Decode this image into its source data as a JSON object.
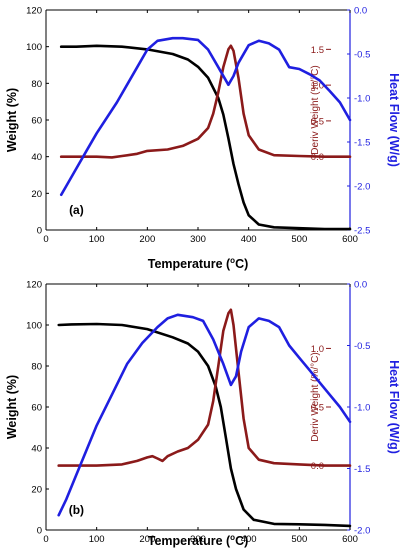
{
  "chart_data": [
    {
      "panel_label": "(a)",
      "type": "line",
      "xlabel": "Temperature (",
      "xlabel_sup": "o",
      "xlabel_tail": "C)",
      "xlim": [
        0,
        600
      ],
      "x_ticks": [
        0,
        100,
        200,
        300,
        400,
        500,
        600
      ],
      "axes": {
        "left": {
          "label": "Weight (%)",
          "lim": [
            0,
            120
          ],
          "ticks": [
            0,
            20,
            40,
            60,
            80,
            100,
            120
          ],
          "color": "#000000"
        },
        "deriv": {
          "label": "Deriv Weight (%/°C)",
          "lim": [
            -1.025,
            2.05
          ],
          "ticks": [
            "0.0",
            "0.5",
            "1.0",
            "1.5"
          ],
          "tick_values": [
            0,
            0.5,
            1.0,
            1.5
          ],
          "color": "#8b1a1a"
        },
        "right": {
          "label": "Heat Flow (W/g)",
          "lim": [
            -2.5,
            0
          ],
          "ticks": [
            "-2.5",
            "-2.0",
            "-1.5",
            "-1.0",
            "-0.5",
            "0.0"
          ],
          "tick_values": [
            -2.5,
            -2.0,
            -1.5,
            -1.0,
            -0.5,
            0.0
          ],
          "color": "#1f1fe0"
        }
      },
      "series": [
        {
          "axis": "left",
          "color": "#000000",
          "points": [
            [
              30,
              100
            ],
            [
              60,
              100
            ],
            [
              100,
              100.5
            ],
            [
              150,
              100
            ],
            [
              200,
              98.5
            ],
            [
              250,
              96
            ],
            [
              280,
              93
            ],
            [
              300,
              89
            ],
            [
              320,
              83
            ],
            [
              340,
              72
            ],
            [
              350,
              63
            ],
            [
              360,
              50
            ],
            [
              370,
              36
            ],
            [
              380,
              25
            ],
            [
              390,
              15
            ],
            [
              400,
              8
            ],
            [
              420,
              3
            ],
            [
              450,
              1.5
            ],
            [
              500,
              1
            ],
            [
              550,
              0.5
            ],
            [
              600,
              0.5
            ]
          ]
        },
        {
          "axis": "deriv",
          "color": "#8b1a1a",
          "points": [
            [
              30,
              0
            ],
            [
              100,
              0
            ],
            [
              130,
              -0.01
            ],
            [
              150,
              0.01
            ],
            [
              180,
              0.04
            ],
            [
              200,
              0.08
            ],
            [
              240,
              0.1
            ],
            [
              270,
              0.15
            ],
            [
              300,
              0.25
            ],
            [
              320,
              0.4
            ],
            [
              330,
              0.6
            ],
            [
              340,
              0.9
            ],
            [
              350,
              1.25
            ],
            [
              360,
              1.5
            ],
            [
              365,
              1.55
            ],
            [
              370,
              1.48
            ],
            [
              380,
              1.1
            ],
            [
              390,
              0.6
            ],
            [
              400,
              0.3
            ],
            [
              420,
              0.1
            ],
            [
              450,
              0.02
            ],
            [
              500,
              0.01
            ],
            [
              550,
              0
            ],
            [
              600,
              0
            ]
          ]
        },
        {
          "axis": "right",
          "color": "#1f1fe0",
          "points": [
            [
              30,
              -2.1
            ],
            [
              40,
              -2.0
            ],
            [
              60,
              -1.8
            ],
            [
              80,
              -1.6
            ],
            [
              100,
              -1.4
            ],
            [
              140,
              -1.05
            ],
            [
              180,
              -0.65
            ],
            [
              200,
              -0.45
            ],
            [
              220,
              -0.35
            ],
            [
              250,
              -0.32
            ],
            [
              270,
              -0.32
            ],
            [
              300,
              -0.34
            ],
            [
              320,
              -0.45
            ],
            [
              340,
              -0.65
            ],
            [
              360,
              -0.85
            ],
            [
              370,
              -0.75
            ],
            [
              380,
              -0.6
            ],
            [
              400,
              -0.4
            ],
            [
              420,
              -0.35
            ],
            [
              440,
              -0.38
            ],
            [
              460,
              -0.45
            ],
            [
              480,
              -0.65
            ],
            [
              500,
              -0.67
            ],
            [
              520,
              -0.73
            ],
            [
              540,
              -0.8
            ],
            [
              560,
              -0.92
            ],
            [
              580,
              -1.05
            ],
            [
              600,
              -1.25
            ]
          ]
        }
      ]
    },
    {
      "panel_label": "(b)",
      "type": "line",
      "xlabel": "Temperature (",
      "xlabel_sup": "o",
      "xlabel_tail": "C)",
      "xlim": [
        0,
        600
      ],
      "x_ticks": [
        0,
        100,
        200,
        300,
        400,
        500,
        600
      ],
      "axes": {
        "left": {
          "label": "Weight (%)",
          "lim": [
            0,
            120
          ],
          "ticks": [
            0,
            20,
            40,
            60,
            80,
            100,
            120
          ],
          "color": "#000000"
        },
        "deriv": {
          "label": "Deriv Weight (%/°C)",
          "lim": [
            -0.55,
            1.55
          ],
          "ticks": [
            "0.0",
            "0.5",
            "1.0"
          ],
          "tick_values": [
            0,
            0.5,
            1.0
          ],
          "color": "#8b1a1a"
        },
        "right": {
          "label": "Heat Flow (W/g)",
          "lim": [
            -2.0,
            0
          ],
          "ticks": [
            "-2.0",
            "-1.5",
            "-1.0",
            "-0.5",
            "0.0"
          ],
          "tick_values": [
            -2.0,
            -1.5,
            -1.0,
            -0.5,
            0.0
          ],
          "color": "#1f1fe0"
        }
      },
      "series": [
        {
          "axis": "left",
          "color": "#000000",
          "points": [
            [
              25,
              100
            ],
            [
              50,
              100.3
            ],
            [
              100,
              100.5
            ],
            [
              150,
              100
            ],
            [
              200,
              98
            ],
            [
              250,
              94
            ],
            [
              280,
              91
            ],
            [
              300,
              87
            ],
            [
              320,
              80
            ],
            [
              335,
              70
            ],
            [
              345,
              60
            ],
            [
              355,
              45
            ],
            [
              365,
              30
            ],
            [
              375,
              20
            ],
            [
              390,
              10
            ],
            [
              410,
              5
            ],
            [
              450,
              3
            ],
            [
              500,
              2.8
            ],
            [
              550,
              2.5
            ],
            [
              600,
              2
            ]
          ]
        },
        {
          "axis": "deriv",
          "color": "#8b1a1a",
          "points": [
            [
              25,
              0
            ],
            [
              100,
              0
            ],
            [
              150,
              0.01
            ],
            [
              180,
              0.04
            ],
            [
              200,
              0.07
            ],
            [
              210,
              0.08
            ],
            [
              220,
              0.06
            ],
            [
              230,
              0.04
            ],
            [
              240,
              0.08
            ],
            [
              260,
              0.12
            ],
            [
              280,
              0.15
            ],
            [
              300,
              0.22
            ],
            [
              320,
              0.35
            ],
            [
              330,
              0.55
            ],
            [
              340,
              0.85
            ],
            [
              350,
              1.15
            ],
            [
              360,
              1.3
            ],
            [
              365,
              1.33
            ],
            [
              370,
              1.2
            ],
            [
              380,
              0.8
            ],
            [
              390,
              0.4
            ],
            [
              400,
              0.15
            ],
            [
              420,
              0.05
            ],
            [
              450,
              0.02
            ],
            [
              500,
              0.01
            ],
            [
              550,
              0
            ],
            [
              600,
              0
            ]
          ]
        },
        {
          "axis": "right",
          "color": "#1f1fe0",
          "points": [
            [
              25,
              -1.88
            ],
            [
              40,
              -1.75
            ],
            [
              60,
              -1.55
            ],
            [
              80,
              -1.35
            ],
            [
              100,
              -1.15
            ],
            [
              130,
              -0.9
            ],
            [
              160,
              -0.65
            ],
            [
              190,
              -0.48
            ],
            [
              220,
              -0.35
            ],
            [
              240,
              -0.28
            ],
            [
              260,
              -0.25
            ],
            [
              290,
              -0.27
            ],
            [
              310,
              -0.3
            ],
            [
              330,
              -0.45
            ],
            [
              350,
              -0.65
            ],
            [
              365,
              -0.82
            ],
            [
              375,
              -0.75
            ],
            [
              385,
              -0.55
            ],
            [
              400,
              -0.35
            ],
            [
              420,
              -0.28
            ],
            [
              440,
              -0.3
            ],
            [
              460,
              -0.35
            ],
            [
              480,
              -0.5
            ],
            [
              500,
              -0.6
            ],
            [
              520,
              -0.7
            ],
            [
              540,
              -0.8
            ],
            [
              560,
              -0.9
            ],
            [
              580,
              -1.0
            ],
            [
              600,
              -1.12
            ]
          ]
        }
      ]
    }
  ]
}
